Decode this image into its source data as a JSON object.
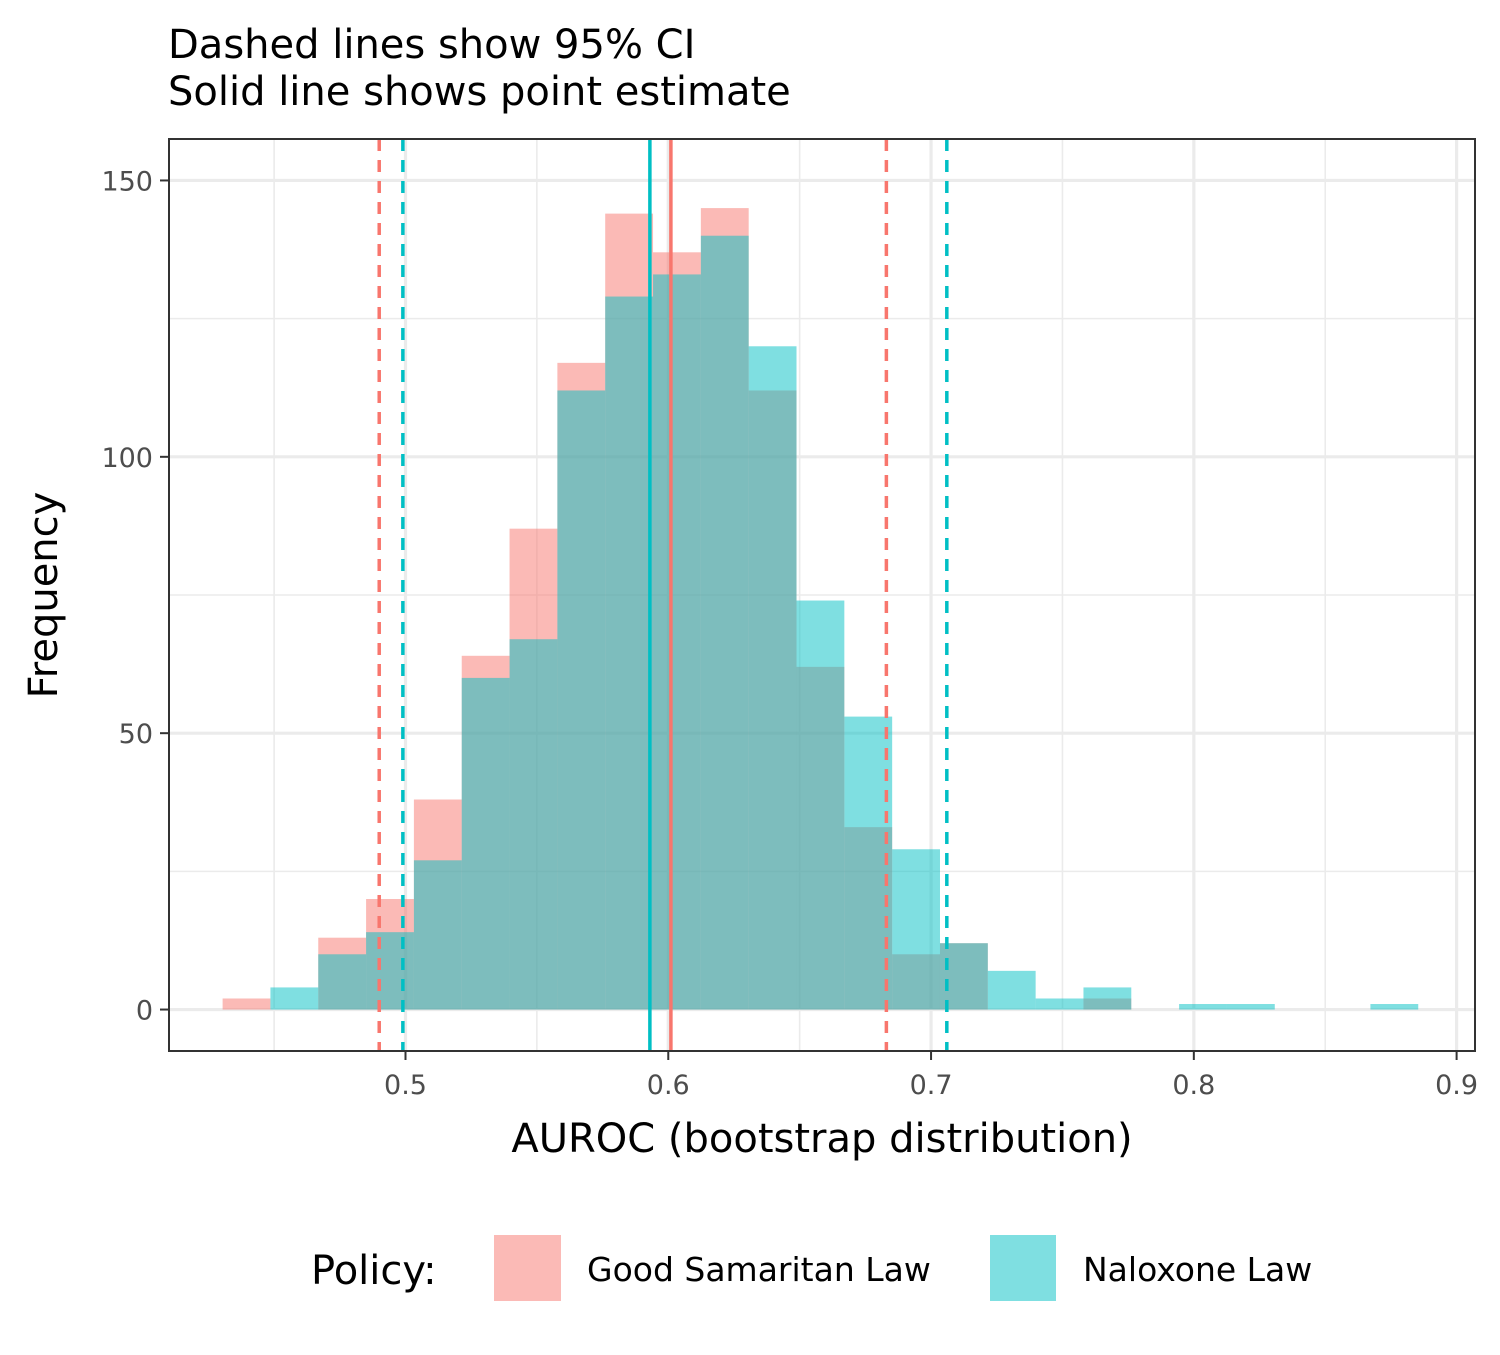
{
  "title_line1": "Dashed lines show 95% CI",
  "title_line2": "Solid line shows point estimate",
  "chart_data": {
    "type": "histogram",
    "xlabel": "AUROC (bootstrap distribution)",
    "ylabel": "Frequency",
    "xlim": [
      0.41,
      0.907
    ],
    "ylim": [
      -7.5,
      157.5
    ],
    "x_ticks": [
      0.5,
      0.6,
      0.7,
      0.8,
      0.9
    ],
    "y_ticks": [
      0,
      50,
      100,
      150
    ],
    "grid": true,
    "legend": {
      "title": "Policy:",
      "position": "bottom"
    },
    "bin_width": 0.0182,
    "series": [
      {
        "name": "Good Samaritan Law",
        "color": "#F8766D",
        "bins": [
          {
            "x0": 0.4304,
            "x1": 0.4486,
            "count": 2
          },
          {
            "x0": 0.4668,
            "x1": 0.485,
            "count": 13
          },
          {
            "x0": 0.485,
            "x1": 0.5032,
            "count": 20
          },
          {
            "x0": 0.5032,
            "x1": 0.5214,
            "count": 38
          },
          {
            "x0": 0.5214,
            "x1": 0.5396,
            "count": 64
          },
          {
            "x0": 0.5396,
            "x1": 0.5578,
            "count": 87
          },
          {
            "x0": 0.5578,
            "x1": 0.576,
            "count": 117
          },
          {
            "x0": 0.576,
            "x1": 0.5942,
            "count": 144
          },
          {
            "x0": 0.5942,
            "x1": 0.6124,
            "count": 137
          },
          {
            "x0": 0.6124,
            "x1": 0.6306,
            "count": 145
          },
          {
            "x0": 0.6306,
            "x1": 0.6488,
            "count": 112
          },
          {
            "x0": 0.6488,
            "x1": 0.667,
            "count": 62
          },
          {
            "x0": 0.667,
            "x1": 0.6852,
            "count": 33
          },
          {
            "x0": 0.6852,
            "x1": 0.7034,
            "count": 10
          },
          {
            "x0": 0.7034,
            "x1": 0.7216,
            "count": 12
          },
          {
            "x0": 0.758,
            "x1": 0.7762,
            "count": 2
          }
        ],
        "point_estimate": 0.601,
        "ci_95": [
          0.49,
          0.683
        ]
      },
      {
        "name": "Naloxone Law",
        "color": "#00BFC4",
        "bins": [
          {
            "x0": 0.4486,
            "x1": 0.4668,
            "count": 4
          },
          {
            "x0": 0.4668,
            "x1": 0.485,
            "count": 10
          },
          {
            "x0": 0.485,
            "x1": 0.5032,
            "count": 14
          },
          {
            "x0": 0.5032,
            "x1": 0.5214,
            "count": 27
          },
          {
            "x0": 0.5214,
            "x1": 0.5396,
            "count": 60
          },
          {
            "x0": 0.5396,
            "x1": 0.5578,
            "count": 67
          },
          {
            "x0": 0.5578,
            "x1": 0.576,
            "count": 112
          },
          {
            "x0": 0.576,
            "x1": 0.5942,
            "count": 129
          },
          {
            "x0": 0.5942,
            "x1": 0.6124,
            "count": 133
          },
          {
            "x0": 0.6124,
            "x1": 0.6306,
            "count": 140
          },
          {
            "x0": 0.6306,
            "x1": 0.6488,
            "count": 120
          },
          {
            "x0": 0.6488,
            "x1": 0.667,
            "count": 74
          },
          {
            "x0": 0.667,
            "x1": 0.6852,
            "count": 53
          },
          {
            "x0": 0.6852,
            "x1": 0.7034,
            "count": 29
          },
          {
            "x0": 0.7034,
            "x1": 0.7216,
            "count": 12
          },
          {
            "x0": 0.7216,
            "x1": 0.7398,
            "count": 7
          },
          {
            "x0": 0.7398,
            "x1": 0.758,
            "count": 2
          },
          {
            "x0": 0.758,
            "x1": 0.7762,
            "count": 4
          },
          {
            "x0": 0.7944,
            "x1": 0.8126,
            "count": 1
          },
          {
            "x0": 0.8126,
            "x1": 0.8308,
            "count": 1
          },
          {
            "x0": 0.8672,
            "x1": 0.8854,
            "count": 1
          }
        ],
        "point_estimate": 0.593,
        "ci_95": [
          0.499,
          0.706
        ]
      }
    ]
  }
}
